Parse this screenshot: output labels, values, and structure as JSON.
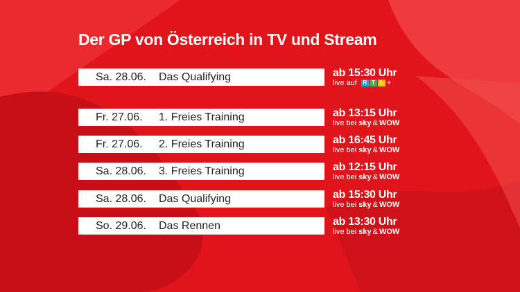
{
  "title": "Der GP von Österreich in TV und Stream",
  "featured": {
    "date": "Sa. 28.06.",
    "session": "Das Qualifying",
    "time": "ab 15:30 Uhr",
    "via": "live auf",
    "logo_letters": [
      "R",
      "T",
      "L"
    ],
    "logo_suffix": "+"
  },
  "schedule": [
    {
      "date": "Fr. 27.06.",
      "session": "1. Freies Training",
      "time": "ab 13:15 Uhr",
      "via": "live bei",
      "channel_a": "sky",
      "joiner": "&",
      "channel_b": "WOW"
    },
    {
      "date": "Fr. 27.06.",
      "session": "2. Freies Training",
      "time": "ab 16:45 Uhr",
      "via": "live bei",
      "channel_a": "sky",
      "joiner": "&",
      "channel_b": "WOW"
    },
    {
      "date": "Sa. 28.06.",
      "session": "3. Freies Training",
      "time": "ab 12:15 Uhr",
      "via": "live bei",
      "channel_a": "sky",
      "joiner": "&",
      "channel_b": "WOW"
    },
    {
      "date": "Sa. 28.06.",
      "session": "Das Qualifying",
      "time": "ab 15:30 Uhr",
      "via": "live bei",
      "channel_a": "sky",
      "joiner": "&",
      "channel_b": "WOW"
    },
    {
      "date": "So. 29.06.",
      "session": "Das Rennen",
      "time": "ab 13:30 Uhr",
      "via": "live bei",
      "channel_a": "sky",
      "joiner": "&",
      "channel_b": "WOW"
    }
  ]
}
